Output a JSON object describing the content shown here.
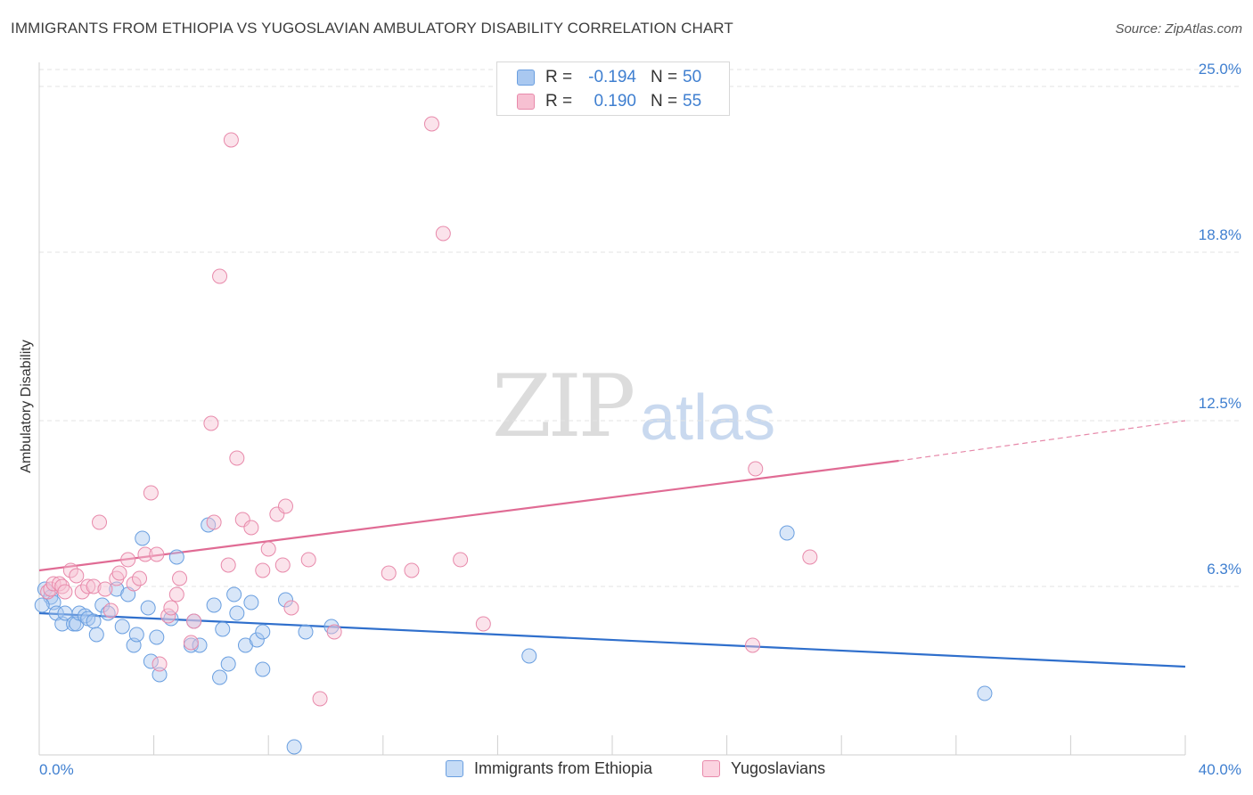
{
  "title": "IMMIGRANTS FROM ETHIOPIA VS YUGOSLAVIAN AMBULATORY DISABILITY CORRELATION CHART",
  "source": "Source: ZipAtlas.com",
  "watermark": {
    "zip": "ZIP",
    "atlas": "atlas"
  },
  "legend_top": [
    {
      "r_label": "R =",
      "r_value": "-0.194",
      "n_label": "N =",
      "n_value": "50",
      "color": "#a9c8f0",
      "border": "#6a9fe0"
    },
    {
      "r_label": "R =",
      "r_value": "0.190",
      "n_label": "N =",
      "n_value": "55",
      "color": "#f7c0d2",
      "border": "#e88aab"
    }
  ],
  "legend_bottom": [
    {
      "label": "Immigrants from Ethiopia",
      "color": "#c5dbf6",
      "border": "#6a9fe0"
    },
    {
      "label": "Yugoslavians",
      "color": "#fbd3e0",
      "border": "#e88aab"
    }
  ],
  "chart_data": {
    "type": "scatter",
    "title": "IMMIGRANTS FROM ETHIOPIA VS YUGOSLAVIAN AMBULATORY DISABILITY CORRELATION CHART",
    "xlabel": "",
    "ylabel": "Ambulatory Disability",
    "xlim": [
      0,
      40
    ],
    "ylim": [
      0,
      25.9
    ],
    "x_tick_labels": [
      {
        "value": 0,
        "label": "0.0%"
      },
      {
        "value": 40,
        "label": "40.0%"
      }
    ],
    "y_ticks": [
      {
        "value": 6.3,
        "label": "6.3%"
      },
      {
        "value": 12.5,
        "label": "12.5%"
      },
      {
        "value": 18.8,
        "label": "18.8%"
      },
      {
        "value": 25.0,
        "label": "25.0%"
      }
    ],
    "grid": true,
    "series": [
      {
        "name": "Immigrants from Ethiopia",
        "color": "#6a9fe0",
        "fill": "rgba(169,200,240,0.45)",
        "trend": {
          "x0": 0,
          "y0": 5.3,
          "x1": 40,
          "y1": 3.3,
          "color": "#2f6fcc"
        },
        "points": [
          [
            0.2,
            6.2
          ],
          [
            0.4,
            5.9
          ],
          [
            0.5,
            5.7
          ],
          [
            0.6,
            5.3
          ],
          [
            0.8,
            4.9
          ],
          [
            0.9,
            5.3
          ],
          [
            1.2,
            4.9
          ],
          [
            1.3,
            4.9
          ],
          [
            1.4,
            5.3
          ],
          [
            1.6,
            5.2
          ],
          [
            1.7,
            5.1
          ],
          [
            1.9,
            5.0
          ],
          [
            2.0,
            4.5
          ],
          [
            2.2,
            5.6
          ],
          [
            2.4,
            5.3
          ],
          [
            2.7,
            6.2
          ],
          [
            2.9,
            4.8
          ],
          [
            3.1,
            6.0
          ],
          [
            3.3,
            4.1
          ],
          [
            3.4,
            4.5
          ],
          [
            3.6,
            8.1
          ],
          [
            3.8,
            5.5
          ],
          [
            3.9,
            3.5
          ],
          [
            4.1,
            4.4
          ],
          [
            4.2,
            3.0
          ],
          [
            4.6,
            5.1
          ],
          [
            4.8,
            7.4
          ],
          [
            5.3,
            4.1
          ],
          [
            5.4,
            5.0
          ],
          [
            5.6,
            4.1
          ],
          [
            5.9,
            8.6
          ],
          [
            6.1,
            5.6
          ],
          [
            6.3,
            2.9
          ],
          [
            6.4,
            4.7
          ],
          [
            6.6,
            3.4
          ],
          [
            6.8,
            6.0
          ],
          [
            6.9,
            5.3
          ],
          [
            7.2,
            4.1
          ],
          [
            7.4,
            5.7
          ],
          [
            7.6,
            4.3
          ],
          [
            7.8,
            4.6
          ],
          [
            7.8,
            3.2
          ],
          [
            8.6,
            5.8
          ],
          [
            8.9,
            0.3
          ],
          [
            9.3,
            4.6
          ],
          [
            10.2,
            4.8
          ],
          [
            17.1,
            3.7
          ],
          [
            26.1,
            8.3
          ],
          [
            33.0,
            2.3
          ],
          [
            0.1,
            5.6
          ]
        ]
      },
      {
        "name": "Yugoslavians",
        "color": "#e88aab",
        "fill": "rgba(247,192,210,0.45)",
        "trend": {
          "x0": 0,
          "y0": 6.9,
          "x1": 30,
          "y1": 11.0,
          "x_dash_end": 40,
          "y_dash_end": 12.5,
          "color": "#e06b94"
        },
        "points": [
          [
            0.3,
            6.1
          ],
          [
            0.4,
            6.2
          ],
          [
            0.5,
            6.4
          ],
          [
            0.7,
            6.4
          ],
          [
            0.8,
            6.3
          ],
          [
            0.9,
            6.1
          ],
          [
            1.1,
            6.9
          ],
          [
            1.3,
            6.7
          ],
          [
            1.5,
            6.1
          ],
          [
            1.7,
            6.3
          ],
          [
            1.9,
            6.3
          ],
          [
            2.1,
            8.7
          ],
          [
            2.3,
            6.2
          ],
          [
            2.5,
            5.4
          ],
          [
            2.7,
            6.6
          ],
          [
            2.8,
            6.8
          ],
          [
            3.1,
            7.3
          ],
          [
            3.3,
            6.4
          ],
          [
            3.5,
            6.6
          ],
          [
            3.7,
            7.5
          ],
          [
            3.9,
            9.8
          ],
          [
            4.1,
            7.5
          ],
          [
            4.2,
            3.4
          ],
          [
            4.5,
            5.2
          ],
          [
            4.6,
            5.5
          ],
          [
            4.8,
            6.0
          ],
          [
            4.9,
            6.6
          ],
          [
            5.3,
            4.2
          ],
          [
            5.4,
            5.0
          ],
          [
            6.0,
            12.4
          ],
          [
            6.1,
            8.7
          ],
          [
            6.3,
            17.9
          ],
          [
            6.6,
            7.1
          ],
          [
            6.7,
            23.0
          ],
          [
            6.9,
            11.1
          ],
          [
            7.1,
            8.8
          ],
          [
            7.4,
            8.5
          ],
          [
            7.8,
            6.9
          ],
          [
            8.0,
            7.7
          ],
          [
            8.3,
            9.0
          ],
          [
            8.5,
            7.1
          ],
          [
            8.6,
            9.3
          ],
          [
            8.8,
            5.5
          ],
          [
            9.4,
            7.3
          ],
          [
            9.8,
            2.1
          ],
          [
            10.3,
            4.6
          ],
          [
            12.2,
            6.8
          ],
          [
            13.0,
            6.9
          ],
          [
            13.7,
            23.6
          ],
          [
            14.1,
            19.5
          ],
          [
            14.7,
            7.3
          ],
          [
            15.5,
            4.9
          ],
          [
            24.9,
            4.1
          ],
          [
            25.0,
            10.7
          ],
          [
            26.9,
            7.4
          ]
        ]
      }
    ]
  }
}
